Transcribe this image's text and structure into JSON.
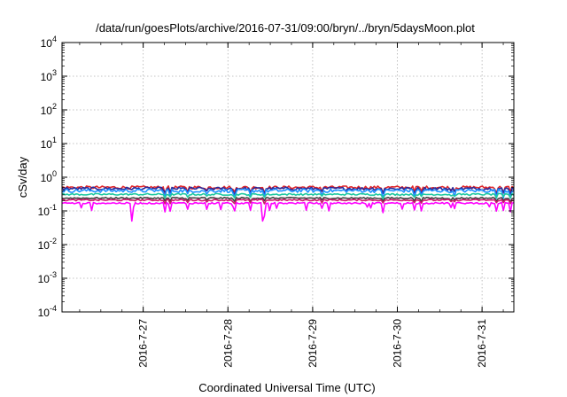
{
  "chart_data": {
    "type": "line",
    "title": "/data/run/goesPlots/archive/2016-07-31/09:00/bryn/../bryn/5daysMoon.plot",
    "xlabel": "Coordinated Universal Time (UTC)",
    "ylabel": "cSv/day",
    "y_scale": "log",
    "ylim": [
      0.0001,
      10000
    ],
    "xlim": [
      "2016-07-26T01:00",
      "2016-07-31T09:00"
    ],
    "grid": true,
    "x_ticks": [
      {
        "x": "2016-07-27T00:00",
        "label": "2016-7-27"
      },
      {
        "x": "2016-07-28T00:00",
        "label": "2016-7-28"
      },
      {
        "x": "2016-07-29T00:00",
        "label": "2016-7-29"
      },
      {
        "x": "2016-07-30T00:00",
        "label": "2016-7-30"
      },
      {
        "x": "2016-07-31T00:00",
        "label": "2016-7-31"
      }
    ],
    "y_ticks": [
      {
        "value": 0.0001,
        "base": "10",
        "exp": "-4"
      },
      {
        "value": 0.001,
        "base": "10",
        "exp": "-3"
      },
      {
        "value": 0.01,
        "base": "10",
        "exp": "-2"
      },
      {
        "value": 0.1,
        "base": "10",
        "exp": "-1"
      },
      {
        "value": 1,
        "base": "10",
        "exp": "0"
      },
      {
        "value": 10,
        "base": "10",
        "exp": "1"
      },
      {
        "value": 100,
        "base": "10",
        "exp": "2"
      },
      {
        "value": 1000,
        "base": "10",
        "exp": "3"
      },
      {
        "value": 10000,
        "base": "10",
        "exp": "4"
      }
    ],
    "series": [
      {
        "color": "#e0262b",
        "level": 0.5,
        "noise": 0.1,
        "dip_scale": 0.6,
        "spike_chance": 0.0
      },
      {
        "color": "#2a2a9a",
        "level": 0.46,
        "noise": 0.1,
        "dip_scale": 0.6,
        "spike_chance": 0.0
      },
      {
        "color": "#1e90ff",
        "level": 0.4,
        "noise": 0.12,
        "dip_scale": 0.7,
        "spike_chance": 0.0
      },
      {
        "color": "#20c9a0",
        "level": 0.31,
        "noise": 0.06,
        "dip_scale": 0.4,
        "spike_chance": 0.0
      },
      {
        "color": "#404040",
        "level": 0.24,
        "noise": 0.05,
        "dip_scale": 0.4,
        "spike_chance": 0.0
      },
      {
        "color": "#cc1a6a",
        "level": 0.21,
        "noise": 0.05,
        "dip_scale": 0.4,
        "spike_chance": 0.0
      },
      {
        "color": "#ff00ff",
        "level": 0.17,
        "noise": 0.05,
        "dip_scale": 0.9,
        "spike_chance": 0.06
      }
    ],
    "deep_dips": [
      {
        "x": "2016-07-26T20:50",
        "value": 0.05
      },
      {
        "x": "2016-07-28T09:50",
        "value": 0.05
      }
    ]
  }
}
